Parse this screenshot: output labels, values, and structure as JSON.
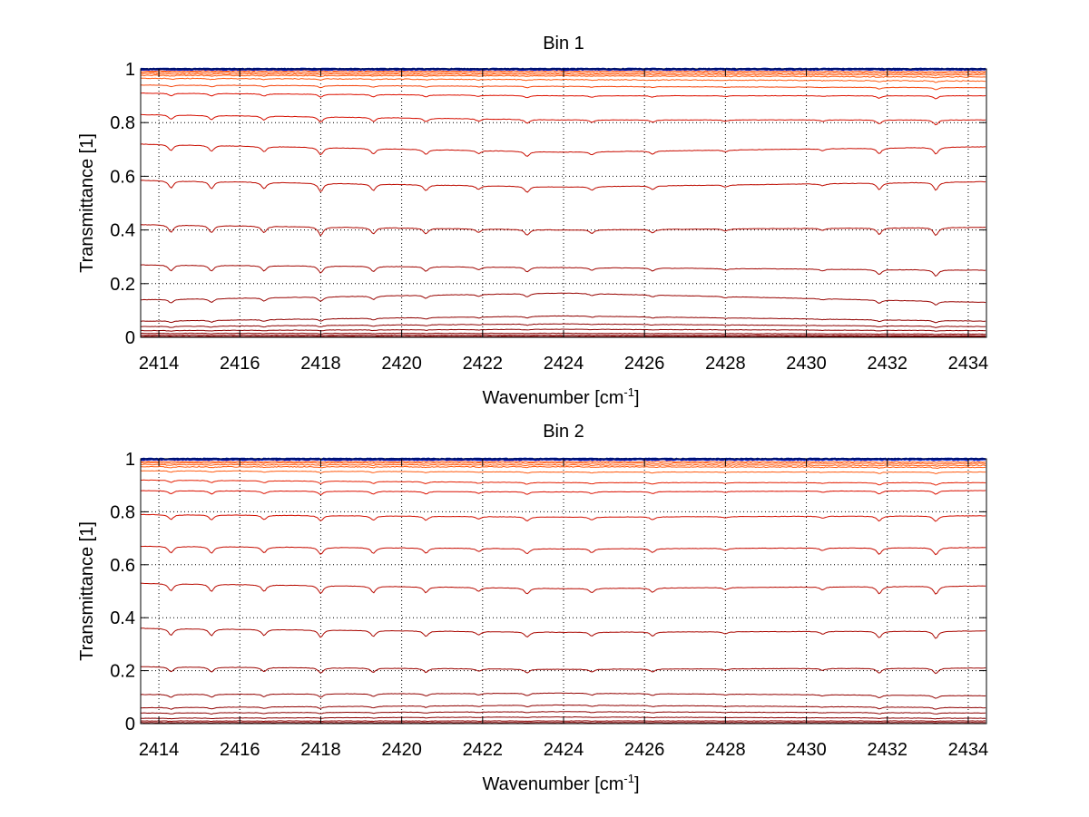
{
  "chart_data": [
    {
      "type": "line",
      "title": "Bin 1",
      "xlabel": "Wavenumber [cm",
      "xlabel_sup": "-1",
      "xlabel_end": "]",
      "ylabel": "Transmittance [1]",
      "xlim": [
        2413.55,
        2434.45
      ],
      "ylim": [
        0,
        1
      ],
      "xticks": [
        2414,
        2416,
        2418,
        2420,
        2422,
        2424,
        2426,
        2428,
        2430,
        2432,
        2434
      ],
      "yticks": [
        0,
        0.2,
        0.4,
        0.6,
        0.8,
        1
      ],
      "ytick_labels": [
        "0",
        "0.2",
        "0.4",
        "0.6",
        "0.8",
        "1"
      ],
      "grid": true,
      "baseline_x": [
        2413.55,
        2424,
        2434.45
      ],
      "absorption_lines": [
        {
          "x": 2414.3,
          "depth": 1.0
        },
        {
          "x": 2415.3,
          "depth": 1.0
        },
        {
          "x": 2416.6,
          "depth": 0.9
        },
        {
          "x": 2418.0,
          "depth": 1.2
        },
        {
          "x": 2419.3,
          "depth": 0.9
        },
        {
          "x": 2420.6,
          "depth": 0.8
        },
        {
          "x": 2421.9,
          "depth": 0.5
        },
        {
          "x": 2423.1,
          "depth": 0.8
        },
        {
          "x": 2424.7,
          "depth": 0.5
        },
        {
          "x": 2426.2,
          "depth": 0.5
        },
        {
          "x": 2428.0,
          "depth": 0.3
        },
        {
          "x": 2430.4,
          "depth": 0.3
        },
        {
          "x": 2431.8,
          "depth": 0.9
        },
        {
          "x": 2433.2,
          "depth": 1.1
        }
      ],
      "series_baselines": [
        [
          1.0,
          1.0,
          1.0
        ],
        [
          0.999,
          0.999,
          0.999
        ],
        [
          0.998,
          0.998,
          0.998
        ],
        [
          0.993,
          0.992,
          0.99
        ],
        [
          0.988,
          0.986,
          0.984
        ],
        [
          0.982,
          0.98,
          0.978
        ],
        [
          0.976,
          0.974,
          0.97
        ],
        [
          0.965,
          0.96,
          0.955
        ],
        [
          0.94,
          0.935,
          0.93
        ],
        [
          0.91,
          0.9,
          0.9
        ],
        [
          0.83,
          0.81,
          0.81
        ],
        [
          0.72,
          0.69,
          0.71
        ],
        [
          0.585,
          0.56,
          0.58
        ],
        [
          0.42,
          0.4,
          0.41
        ],
        [
          0.27,
          0.26,
          0.25
        ],
        [
          0.14,
          0.165,
          0.13
        ],
        [
          0.06,
          0.08,
          0.06
        ],
        [
          0.04,
          0.05,
          0.04
        ],
        [
          0.025,
          0.03,
          0.025
        ],
        [
          0.015,
          0.015,
          0.012
        ],
        [
          0.008,
          0.008,
          0.006
        ],
        [
          0.003,
          0.003,
          0.003
        ]
      ]
    },
    {
      "type": "line",
      "title": "Bin 2",
      "xlabel": "Wavenumber [cm",
      "xlabel_sup": "-1",
      "xlabel_end": "]",
      "ylabel": "Transmittance [1]",
      "xlim": [
        2413.55,
        2434.45
      ],
      "ylim": [
        0,
        1
      ],
      "xticks": [
        2414,
        2416,
        2418,
        2420,
        2422,
        2424,
        2426,
        2428,
        2430,
        2432,
        2434
      ],
      "yticks": [
        0,
        0.2,
        0.4,
        0.6,
        0.8,
        1
      ],
      "ytick_labels": [
        "0",
        "0.2",
        "0.4",
        "0.6",
        "0.8",
        "1"
      ],
      "grid": true,
      "baseline_x": [
        2413.55,
        2424,
        2434.45
      ],
      "absorption_lines": [
        {
          "x": 2414.3,
          "depth": 1.0
        },
        {
          "x": 2415.3,
          "depth": 1.0
        },
        {
          "x": 2416.6,
          "depth": 0.9
        },
        {
          "x": 2418.0,
          "depth": 1.1
        },
        {
          "x": 2419.3,
          "depth": 0.9
        },
        {
          "x": 2420.6,
          "depth": 0.8
        },
        {
          "x": 2421.9,
          "depth": 0.5
        },
        {
          "x": 2423.1,
          "depth": 0.8
        },
        {
          "x": 2424.7,
          "depth": 0.6
        },
        {
          "x": 2426.2,
          "depth": 0.6
        },
        {
          "x": 2428.0,
          "depth": 0.3
        },
        {
          "x": 2430.4,
          "depth": 0.4
        },
        {
          "x": 2431.8,
          "depth": 1.0
        },
        {
          "x": 2433.2,
          "depth": 1.1
        }
      ],
      "series_baselines": [
        [
          1.0,
          1.0,
          1.0
        ],
        [
          0.999,
          0.999,
          0.999
        ],
        [
          0.997,
          0.997,
          0.997
        ],
        [
          0.99,
          0.99,
          0.988
        ],
        [
          0.985,
          0.984,
          0.982
        ],
        [
          0.978,
          0.977,
          0.975
        ],
        [
          0.97,
          0.97,
          0.968
        ],
        [
          0.955,
          0.95,
          0.95
        ],
        [
          0.92,
          0.91,
          0.91
        ],
        [
          0.88,
          0.875,
          0.88
        ],
        [
          0.79,
          0.78,
          0.785
        ],
        [
          0.67,
          0.66,
          0.665
        ],
        [
          0.53,
          0.51,
          0.52
        ],
        [
          0.36,
          0.345,
          0.35
        ],
        [
          0.215,
          0.205,
          0.21
        ],
        [
          0.11,
          0.115,
          0.105
        ],
        [
          0.06,
          0.07,
          0.06
        ],
        [
          0.04,
          0.045,
          0.04
        ],
        [
          0.02,
          0.025,
          0.02
        ],
        [
          0.01,
          0.01,
          0.01
        ],
        [
          0.004,
          0.004,
          0.004
        ]
      ]
    }
  ],
  "colors": {
    "high": "#0022dd",
    "orange": "#ff5a10",
    "red": "#dd1100",
    "dark_red": "#880000",
    "grid": "#000000"
  }
}
